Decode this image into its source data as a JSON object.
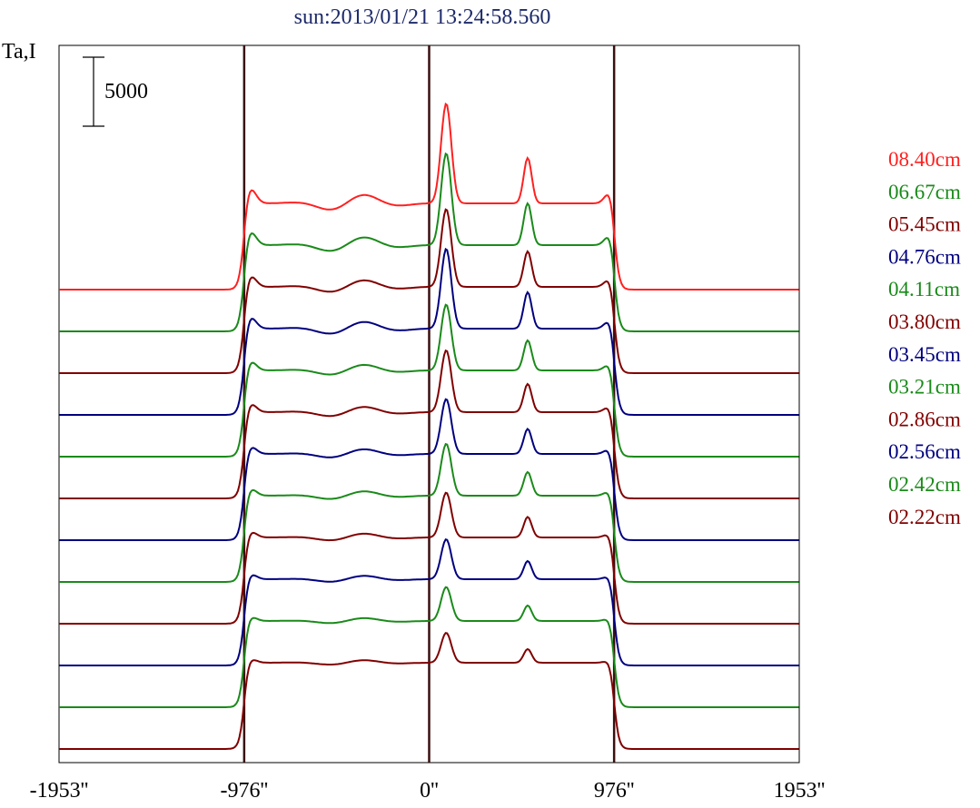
{
  "chart_data": {
    "type": "line",
    "title": "sun:2013/01/21 13:24:58.560",
    "ylabel": "Ta,I",
    "xlabel": "",
    "x_ticks": [
      "-1953''",
      "-976''",
      "0''",
      "976''",
      "1953''"
    ],
    "x_tick_values": [
      -1953,
      -976,
      0,
      976,
      1953
    ],
    "xlim": [
      -1953,
      1953
    ],
    "vertical_markers": [
      -976,
      0,
      976
    ],
    "scale_bar": {
      "label": "5000",
      "value": 5000
    },
    "legend_position": "right",
    "series": [
      {
        "name": "08.40cm",
        "color": "#ff2020",
        "offset": 11,
        "peak": 1.0
      },
      {
        "name": "06.67cm",
        "color": "#1a8a1a",
        "offset": 10,
        "peak": 0.92
      },
      {
        "name": "05.45cm",
        "color": "#800000",
        "offset": 9,
        "peak": 0.78
      },
      {
        "name": "04.76cm",
        "color": "#00007f",
        "offset": 8,
        "peak": 0.8
      },
      {
        "name": "04.11cm",
        "color": "#1a8a1a",
        "offset": 7,
        "peak": 0.66
      },
      {
        "name": "03.80cm",
        "color": "#800000",
        "offset": 6,
        "peak": 0.62
      },
      {
        "name": "03.45cm",
        "color": "#00007f",
        "offset": 5,
        "peak": 0.55
      },
      {
        "name": "03.21cm",
        "color": "#1a8a1a",
        "offset": 4,
        "peak": 0.52
      },
      {
        "name": "02.86cm",
        "color": "#800000",
        "offset": 3,
        "peak": 0.45
      },
      {
        "name": "02.56cm",
        "color": "#00007f",
        "offset": 2,
        "peak": 0.4
      },
      {
        "name": "02.42cm",
        "color": "#1a8a1a",
        "offset": 1,
        "peak": 0.34
      },
      {
        "name": "02.22cm",
        "color": "#800000",
        "offset": 0,
        "peak": 0.3
      }
    ]
  }
}
